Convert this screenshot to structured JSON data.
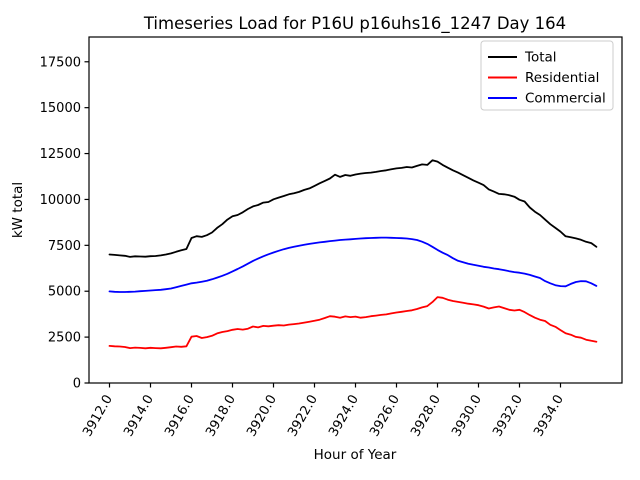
{
  "figure": {
    "title": "Timeseries Load for P16U p16uhs16_1247  Day 164",
    "background_color": "#ffffff"
  },
  "chart_data": {
    "type": "line",
    "title": "Timeseries Load for P16U p16uhs16_1247  Day 164",
    "xlabel": "Hour of Year",
    "ylabel": "kW total",
    "xlim": [
      3911.0,
      3937.0
    ],
    "ylim": [
      0,
      18850
    ],
    "grid": false,
    "legend_position": "upper right",
    "legend_border_color": "#cccccc",
    "axis_color": "#000000",
    "xticks": {
      "values": [
        3912,
        3914,
        3916,
        3918,
        3920,
        3922,
        3924,
        3926,
        3928,
        3930,
        3932,
        3934
      ],
      "labels": [
        "3912.0",
        "3914.0",
        "3916.0",
        "3918.0",
        "3920.0",
        "3922.0",
        "3924.0",
        "3926.0",
        "3928.0",
        "3930.0",
        "3932.0",
        "3934.0"
      ],
      "rotation": -60
    },
    "yticks": {
      "values": [
        0,
        2500,
        5000,
        7500,
        10000,
        12500,
        15000,
        17500
      ],
      "labels": [
        "0",
        "2500",
        "5000",
        "7500",
        "10000",
        "12500",
        "15000",
        "17500"
      ]
    },
    "x": [
      3912.0,
      3912.25,
      3912.5,
      3912.75,
      3913.0,
      3913.25,
      3913.5,
      3913.75,
      3914.0,
      3914.25,
      3914.5,
      3914.75,
      3915.0,
      3915.25,
      3915.5,
      3915.75,
      3916.0,
      3916.25,
      3916.5,
      3916.75,
      3917.0,
      3917.25,
      3917.5,
      3917.75,
      3918.0,
      3918.25,
      3918.5,
      3918.75,
      3919.0,
      3919.25,
      3919.5,
      3919.75,
      3920.0,
      3920.25,
      3920.5,
      3920.75,
      3921.0,
      3921.25,
      3921.5,
      3921.75,
      3922.0,
      3922.25,
      3922.5,
      3922.75,
      3923.0,
      3923.25,
      3923.5,
      3923.75,
      3924.0,
      3924.25,
      3924.5,
      3924.75,
      3925.0,
      3925.25,
      3925.5,
      3925.75,
      3926.0,
      3926.25,
      3926.5,
      3926.75,
      3927.0,
      3927.25,
      3927.5,
      3927.75,
      3928.0,
      3928.25,
      3928.5,
      3928.75,
      3929.0,
      3929.25,
      3929.5,
      3929.75,
      3930.0,
      3930.25,
      3930.5,
      3930.75,
      3931.0,
      3931.25,
      3931.5,
      3931.75,
      3932.0,
      3932.25,
      3932.5,
      3932.75,
      3933.0,
      3933.25,
      3933.5,
      3933.75,
      3934.0,
      3934.25,
      3934.5,
      3934.75,
      3935.0,
      3935.25,
      3935.5,
      3935.75
    ],
    "series": [
      {
        "name": "Total",
        "color": "#000000",
        "values": [
          7000,
          6980,
          6950,
          6930,
          6870,
          6900,
          6890,
          6880,
          6910,
          6920,
          6950,
          7000,
          7060,
          7150,
          7230,
          7300,
          7900,
          8000,
          7960,
          8050,
          8200,
          8450,
          8650,
          8900,
          9080,
          9150,
          9300,
          9480,
          9620,
          9700,
          9830,
          9860,
          10010,
          10100,
          10190,
          10280,
          10340,
          10410,
          10520,
          10600,
          10740,
          10880,
          11010,
          11140,
          11350,
          11230,
          11330,
          11290,
          11360,
          11410,
          11440,
          11460,
          11500,
          11550,
          11590,
          11640,
          11690,
          11720,
          11770,
          11740,
          11830,
          11910,
          11880,
          12130,
          12060,
          11880,
          11730,
          11590,
          11460,
          11320,
          11180,
          11040,
          10910,
          10780,
          10550,
          10430,
          10300,
          10280,
          10230,
          10150,
          9980,
          9890,
          9560,
          9330,
          9150,
          8900,
          8650,
          8450,
          8250,
          7990,
          7940,
          7880,
          7800,
          7690,
          7620,
          7420
        ]
      },
      {
        "name": "Residential",
        "color": "#ff0000",
        "values": [
          2020,
          2000,
          1990,
          1960,
          1900,
          1930,
          1910,
          1890,
          1920,
          1900,
          1890,
          1920,
          1950,
          1990,
          1970,
          2000,
          2520,
          2560,
          2450,
          2500,
          2570,
          2700,
          2780,
          2830,
          2900,
          2940,
          2910,
          2960,
          3080,
          3030,
          3110,
          3090,
          3120,
          3150,
          3130,
          3180,
          3210,
          3240,
          3290,
          3340,
          3390,
          3450,
          3540,
          3640,
          3610,
          3560,
          3630,
          3590,
          3620,
          3560,
          3590,
          3640,
          3670,
          3710,
          3740,
          3790,
          3840,
          3880,
          3920,
          3960,
          4030,
          4120,
          4190,
          4410,
          4680,
          4640,
          4540,
          4470,
          4420,
          4370,
          4320,
          4280,
          4240,
          4160,
          4060,
          4120,
          4170,
          4080,
          3990,
          3950,
          3990,
          3860,
          3700,
          3560,
          3450,
          3380,
          3170,
          3060,
          2880,
          2710,
          2630,
          2510,
          2470,
          2360,
          2300,
          2250
        ]
      },
      {
        "name": "Commercial",
        "color": "#0000ff",
        "values": [
          4990,
          4970,
          4960,
          4960,
          4970,
          4980,
          5000,
          5020,
          5040,
          5060,
          5080,
          5110,
          5150,
          5220,
          5290,
          5360,
          5430,
          5470,
          5520,
          5570,
          5650,
          5740,
          5840,
          5950,
          6080,
          6210,
          6350,
          6500,
          6650,
          6780,
          6900,
          7010,
          7110,
          7200,
          7290,
          7360,
          7420,
          7480,
          7530,
          7580,
          7620,
          7660,
          7690,
          7730,
          7760,
          7790,
          7810,
          7830,
          7850,
          7870,
          7890,
          7900,
          7910,
          7920,
          7920,
          7910,
          7900,
          7890,
          7870,
          7840,
          7790,
          7700,
          7580,
          7420,
          7250,
          7100,
          6970,
          6800,
          6660,
          6580,
          6500,
          6440,
          6390,
          6330,
          6290,
          6240,
          6200,
          6150,
          6090,
          6040,
          6010,
          5960,
          5890,
          5800,
          5720,
          5550,
          5430,
          5330,
          5280,
          5270,
          5400,
          5500,
          5550,
          5540,
          5430,
          5290
        ]
      }
    ]
  }
}
